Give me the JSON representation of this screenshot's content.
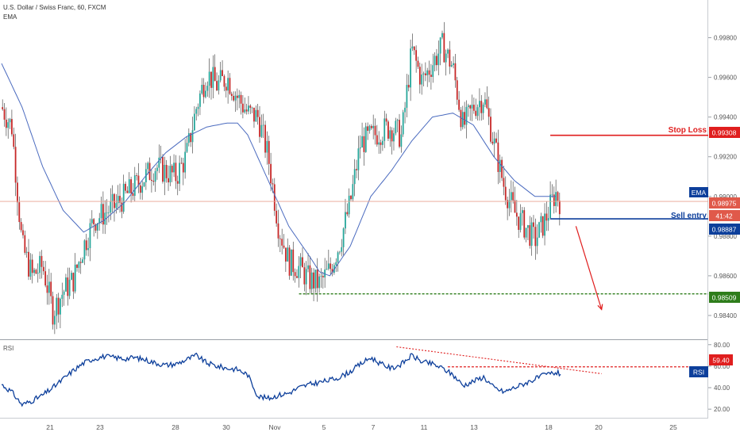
{
  "header": {
    "symbol_line": "U.S. Dollar / Swiss Franc, 60, FXCM",
    "indicator": "EMA"
  },
  "rsi_panel": {
    "label": "RSI",
    "badge": "RSI",
    "level_label": "59.40"
  },
  "annotations": {
    "stop_loss": {
      "text": "Stop Loss",
      "price": "0.99308"
    },
    "sell_entry": {
      "text": "Sell entry",
      "price": "0.98887"
    },
    "target": {
      "price": "0.98509"
    },
    "ema_badge": "EMA",
    "current_price": "0.98975",
    "countdown": "41:42"
  },
  "colors": {
    "up_candle": "#26a69a",
    "down_candle": "#c62828",
    "ema": "#4b6bbf",
    "rsi_line": "#0d3f9b",
    "stop_loss": "#e01e1e",
    "sell_entry": "#0d3f9b",
    "target": "#2e7d1b"
  },
  "chart_data": [
    {
      "type": "candlestick",
      "title": "U.S. Dollar / Swiss Franc, 60, FXCM",
      "xlabel": "",
      "ylabel": "",
      "y_ticks": [
        "0.98400",
        "0.98600",
        "0.98800",
        "0.99000",
        "0.99200",
        "0.99400",
        "0.99600",
        "0.99800"
      ],
      "ylim": [
        0.9828,
        0.9999
      ],
      "x_ticks": [
        "21",
        "23",
        "28",
        "30",
        "Nov",
        "5",
        "7",
        "11",
        "13",
        "18",
        "20",
        "25"
      ],
      "price_path": [
        [
          0,
          0.9945
        ],
        [
          2,
          0.9935
        ],
        [
          4,
          0.9875
        ],
        [
          6,
          0.986
        ],
        [
          8,
          0.9865
        ],
        [
          10,
          0.9842
        ],
        [
          12,
          0.9852
        ],
        [
          14,
          0.9858
        ],
        [
          16,
          0.9875
        ],
        [
          18,
          0.9888
        ],
        [
          22,
          0.9895
        ],
        [
          26,
          0.9905
        ],
        [
          30,
          0.9915
        ],
        [
          34,
          0.991
        ],
        [
          36,
          0.992
        ],
        [
          38,
          0.9945
        ],
        [
          40,
          0.9962
        ],
        [
          42,
          0.9956
        ],
        [
          44,
          0.996
        ],
        [
          46,
          0.995
        ],
        [
          48,
          0.9942
        ],
        [
          50,
          0.994
        ],
        [
          52,
          0.992
        ],
        [
          54,
          0.9885
        ],
        [
          56,
          0.9867
        ],
        [
          58,
          0.9864
        ],
        [
          60,
          0.9858
        ],
        [
          62,
          0.9856
        ],
        [
          64,
          0.9863
        ],
        [
          66,
          0.9877
        ],
        [
          68,
          0.9897
        ],
        [
          70,
          0.9927
        ],
        [
          72,
          0.993
        ],
        [
          74,
          0.9933
        ],
        [
          76,
          0.9935
        ],
        [
          78,
          0.993
        ],
        [
          80,
          0.9974
        ],
        [
          82,
          0.9958
        ],
        [
          84,
          0.9967
        ],
        [
          86,
          0.9976
        ],
        [
          88,
          0.9965
        ],
        [
          90,
          0.9935
        ],
        [
          92,
          0.9945
        ],
        [
          94,
          0.995
        ],
        [
          96,
          0.9927
        ],
        [
          98,
          0.9905
        ],
        [
          100,
          0.9892
        ],
        [
          102,
          0.9885
        ],
        [
          104,
          0.9878
        ],
        [
          106,
          0.9888
        ],
        [
          108,
          0.9902
        ],
        [
          109,
          0.9897
        ]
      ],
      "ema_path": [
        [
          0,
          0.9967
        ],
        [
          4,
          0.9945
        ],
        [
          8,
          0.9915
        ],
        [
          12,
          0.9893
        ],
        [
          16,
          0.9882
        ],
        [
          20,
          0.9888
        ],
        [
          24,
          0.9897
        ],
        [
          28,
          0.991
        ],
        [
          32,
          0.9922
        ],
        [
          36,
          0.993
        ],
        [
          40,
          0.9935
        ],
        [
          44,
          0.9937
        ],
        [
          46,
          0.9937
        ],
        [
          48,
          0.9931
        ],
        [
          52,
          0.9908
        ],
        [
          56,
          0.9885
        ],
        [
          60,
          0.987
        ],
        [
          62,
          0.9862
        ],
        [
          64,
          0.986
        ],
        [
          68,
          0.9875
        ],
        [
          72,
          0.99
        ],
        [
          76,
          0.9913
        ],
        [
          80,
          0.9928
        ],
        [
          84,
          0.994
        ],
        [
          88,
          0.9942
        ],
        [
          92,
          0.9936
        ],
        [
          96,
          0.992
        ],
        [
          100,
          0.9908
        ],
        [
          104,
          0.99
        ],
        [
          108,
          0.99
        ]
      ],
      "levels": [
        {
          "name": "Stop Loss",
          "value": 0.99308,
          "from": 107
        },
        {
          "name": "Sell entry",
          "value": 0.98887,
          "from": 107
        },
        {
          "name": "",
          "value": 0.98509,
          "from": 58
        }
      ],
      "current_price_value": 0.98975,
      "projection_arrow": {
        "from": [
          112,
          0.9885
        ],
        "to": [
          117,
          0.9843
        ]
      }
    },
    {
      "type": "line",
      "title": "RSI",
      "y_ticks": [
        "20.00",
        "40.00",
        "60.00",
        "80.00"
      ],
      "ylim": [
        12,
        85
      ],
      "level": 59.4,
      "series": [
        {
          "points": [
            [
              0,
              43
            ],
            [
              2,
              36
            ],
            [
              3,
              30
            ],
            [
              4,
              24
            ],
            [
              6,
              28
            ],
            [
              8,
              33
            ],
            [
              10,
              40
            ],
            [
              12,
              48
            ],
            [
              14,
              56
            ],
            [
              16,
              63
            ],
            [
              18,
              67
            ],
            [
              20,
              69
            ],
            [
              22,
              68
            ],
            [
              24,
              67
            ],
            [
              26,
              68
            ],
            [
              28,
              66
            ],
            [
              30,
              63
            ],
            [
              32,
              61
            ],
            [
              34,
              62
            ],
            [
              36,
              66
            ],
            [
              38,
              70
            ],
            [
              40,
              63
            ],
            [
              42,
              60
            ],
            [
              44,
              58
            ],
            [
              46,
              57
            ],
            [
              48,
              52
            ],
            [
              50,
              32
            ],
            [
              52,
              30
            ],
            [
              54,
              33
            ],
            [
              56,
              35
            ],
            [
              58,
              40
            ],
            [
              60,
              43
            ],
            [
              62,
              45
            ],
            [
              64,
              47
            ],
            [
              66,
              50
            ],
            [
              68,
              55
            ],
            [
              70,
              62
            ],
            [
              72,
              68
            ],
            [
              74,
              62
            ],
            [
              76,
              58
            ],
            [
              78,
              62
            ],
            [
              80,
              70
            ],
            [
              82,
              64
            ],
            [
              84,
              62
            ],
            [
              86,
              58
            ],
            [
              88,
              52
            ],
            [
              90,
              42
            ],
            [
              92,
              46
            ],
            [
              94,
              50
            ],
            [
              96,
              40
            ],
            [
              98,
              36
            ],
            [
              100,
              40
            ],
            [
              102,
              44
            ],
            [
              104,
              48
            ],
            [
              106,
              52
            ],
            [
              108,
              54
            ],
            [
              109,
              53
            ]
          ]
        }
      ],
      "trendline": {
        "from": [
          77,
          78
        ],
        "to": [
          117,
          53
        ]
      }
    }
  ]
}
